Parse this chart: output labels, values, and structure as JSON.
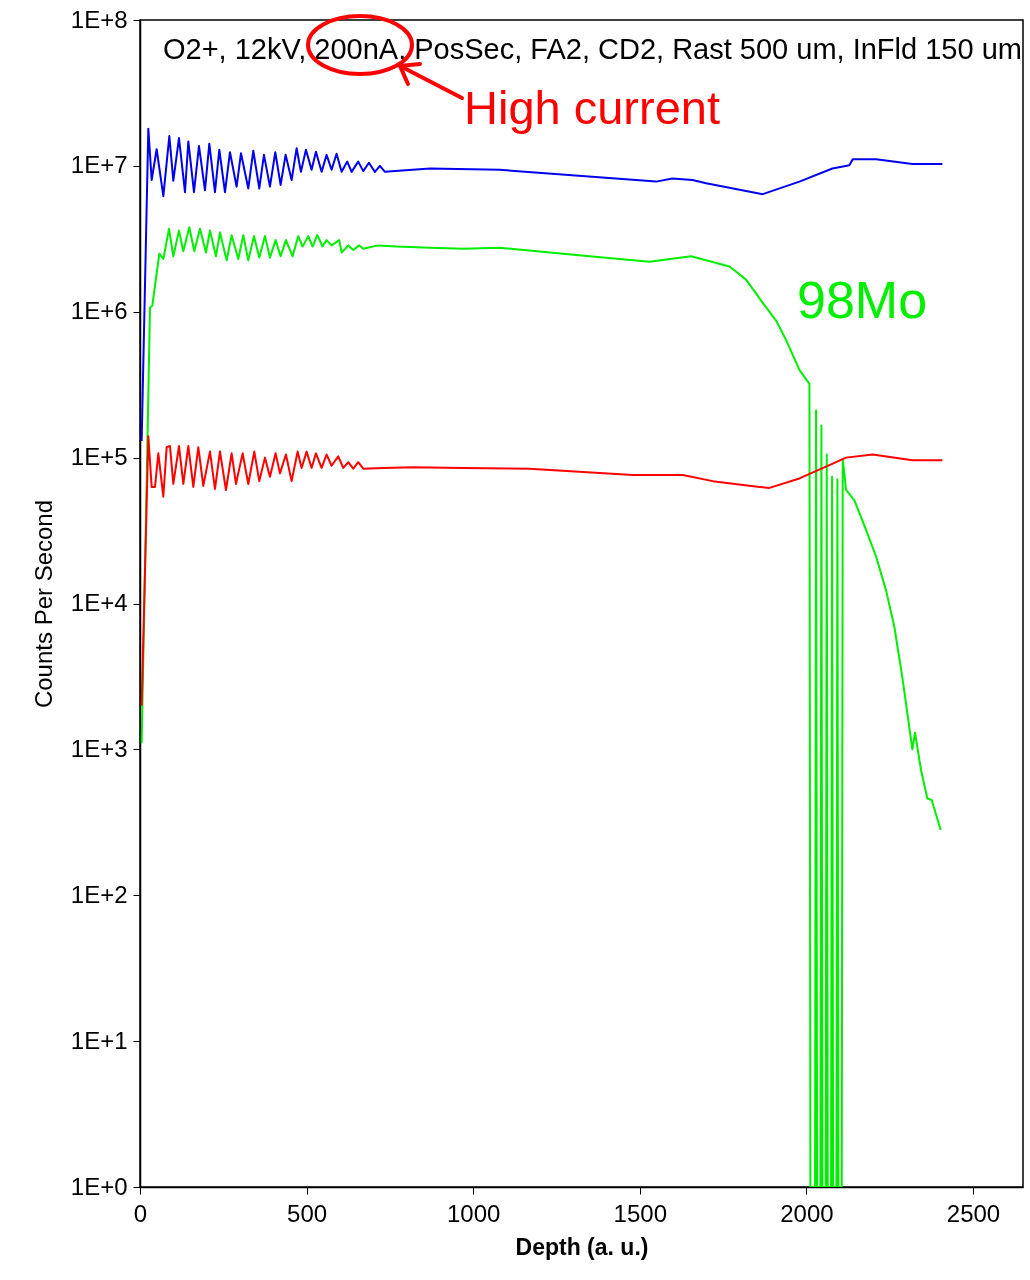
{
  "chart_data": {
    "type": "line",
    "xlabel": "Depth (a. u.)",
    "ylabel": "Counts Per Second",
    "log": "y",
    "xlim": [
      0,
      2650
    ],
    "xticks": [
      0,
      500,
      1000,
      1500,
      2000,
      2500
    ],
    "ylim": [
      1,
      100000000
    ],
    "yticks": [
      {
        "value": 1,
        "label": "1E+0"
      },
      {
        "value": 10,
        "label": "1E+1"
      },
      {
        "value": 100,
        "label": "1E+2"
      },
      {
        "value": 1000,
        "label": "1E+3"
      },
      {
        "value": 10000,
        "label": "1E+4"
      },
      {
        "value": 100000,
        "label": "1E+5"
      },
      {
        "value": 1000000,
        "label": "1E+6"
      },
      {
        "value": 10000000,
        "label": "1E+7"
      },
      {
        "value": 100000000,
        "label": "1E+8"
      }
    ],
    "annotations": [
      "O2+, 12kV, 200nA, PosSec, FA2, CD2, Rast 500 um, InFld 150 um",
      "High current"
    ],
    "series": [
      {
        "name": "98Mo",
        "color": "#00ee00",
        "x": [
          5,
          30,
          37,
          58,
          70,
          87,
          100,
          117,
          130,
          148,
          163,
          180,
          198,
          210,
          228,
          240,
          260,
          275,
          295,
          310,
          325,
          342,
          358,
          375,
          390,
          407,
          422,
          438,
          458,
          475,
          488,
          505,
          518,
          532,
          548,
          560,
          575,
          598,
          605,
          625,
          640,
          658,
          670,
          715,
          770,
          870,
          970,
          1079,
          1349,
          1529,
          1654,
          1769,
          1819,
          1869,
          1909,
          1939,
          1979,
          2009,
          2012,
          2026,
          2029,
          2032,
          2042,
          2045,
          2048,
          2058,
          2061,
          2064,
          2074,
          2077,
          2080,
          2090,
          2093,
          2096,
          2106,
          2109,
          2119,
          2144,
          2179,
          2209,
          2239,
          2264,
          2288,
          2318,
          2326,
          2344,
          2363,
          2376,
          2403
        ],
        "values": [
          1100,
          1070000,
          1100000,
          2500000,
          2300000,
          3700000,
          2400000,
          3600000,
          2600000,
          3800000,
          2600000,
          3700000,
          2550000,
          3600000,
          2400000,
          3500000,
          2250000,
          3350000,
          2300000,
          3350000,
          2250000,
          3300000,
          2350000,
          3300000,
          2350000,
          3100000,
          2400000,
          3100000,
          2400000,
          3300000,
          2800000,
          3300000,
          2800000,
          3350000,
          2800000,
          3100000,
          2850000,
          3100000,
          2550000,
          2850000,
          2650000,
          2850000,
          2700000,
          2850000,
          2800000,
          2750000,
          2700000,
          2750000,
          2400000,
          2200000,
          2400000,
          2040000,
          1660000,
          1150000,
          870000,
          640000,
          400000,
          320000,
          1,
          1,
          210000,
          1,
          1,
          166000,
          1,
          1,
          105000,
          1,
          1,
          74000,
          1,
          1,
          71000,
          1,
          1,
          98000,
          60000,
          51000,
          32000,
          21000,
          12300,
          6900,
          3100,
          1000,
          1300,
          720,
          460,
          450,
          280
        ]
      },
      {
        "color": "#ff0000",
        "x": [
          5,
          25,
          35,
          45,
          55,
          70,
          80,
          90,
          100,
          117,
          130,
          145,
          160,
          175,
          190,
          210,
          225,
          240,
          258,
          275,
          288,
          308,
          325,
          343,
          358,
          375,
          390,
          407,
          420,
          438,
          455,
          473,
          485,
          500,
          515,
          528,
          545,
          560,
          575,
          595,
          610,
          625,
          640,
          655,
          670,
          730,
          820,
          970,
          1169,
          1479,
          1629,
          1719,
          1859,
          1889,
          1979,
          2079,
          2119,
          2199,
          2318,
          2408
        ],
        "values": [
          2000,
          140000,
          63000,
          63000,
          107000,
          54000,
          118000,
          120000,
          66000,
          120000,
          66000,
          120000,
          63000,
          118000,
          64000,
          110000,
          61000,
          110000,
          60000,
          107000,
          66000,
          107000,
          66000,
          110000,
          69000,
          100000,
          74000,
          107000,
          78000,
          105000,
          69000,
          110000,
          85000,
          110000,
          85000,
          107000,
          85000,
          105000,
          88000,
          102000,
          85000,
          93000,
          84000,
          93000,
          84000,
          85000,
          86000,
          85000,
          84000,
          76000,
          76000,
          69000,
          63000,
          62000,
          72000,
          91000,
          100000,
          105000,
          96000,
          96000
        ]
      },
      {
        "color": "#0000ee",
        "x": [
          5,
          25,
          35,
          50,
          70,
          88,
          100,
          117,
          135,
          145,
          162,
          177,
          195,
          208,
          225,
          238,
          255,
          270,
          290,
          303,
          325,
          340,
          358,
          372,
          390,
          406,
          422,
          437,
          455,
          470,
          483,
          498,
          515,
          528,
          545,
          560,
          575,
          590,
          605,
          622,
          635,
          655,
          670,
          687,
          705,
          720,
          735,
          870,
          1079,
          1549,
          1598,
          1658,
          1699,
          1869,
          1979,
          2078,
          2129,
          2139,
          2209,
          2318,
          2408
        ],
        "values": [
          130000,
          18000000,
          8000000,
          13000000,
          6200000,
          16000000,
          7900000,
          15500000,
          6600000,
          14700000,
          6600000,
          13700000,
          6800000,
          14200000,
          6600000,
          12900000,
          6600000,
          12400000,
          7200000,
          12200000,
          7000000,
          12700000,
          7000000,
          11900000,
          7200000,
          12400000,
          7400000,
          11900000,
          8000000,
          13200000,
          9100000,
          12900000,
          9400000,
          12500000,
          9100000,
          11900000,
          9400000,
          12100000,
          9100000,
          10700000,
          9100000,
          10700000,
          9200000,
          10500000,
          9100000,
          10000000,
          9100000,
          9600000,
          9400000,
          7800000,
          8200000,
          8000000,
          7600000,
          6400000,
          7800000,
          9600000,
          10100000,
          11100000,
          11100000,
          10300000,
          10300000
        ]
      }
    ]
  }
}
